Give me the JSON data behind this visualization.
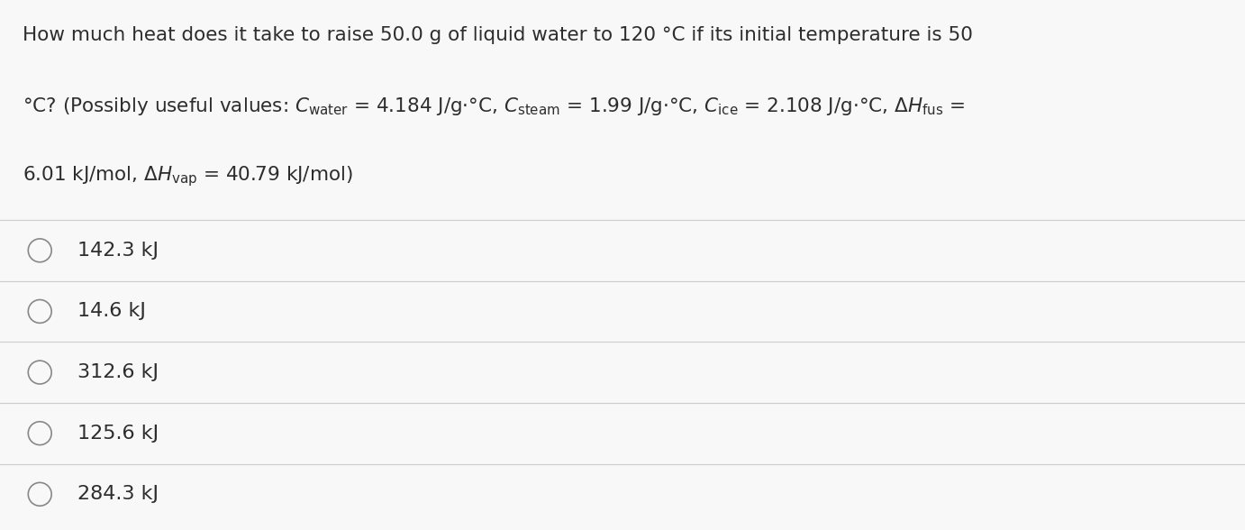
{
  "background_color": "#f8f8f8",
  "choices": [
    "142.3 kJ",
    "14.6 kJ",
    "312.6 kJ",
    "125.6 kJ",
    "284.3 kJ"
  ],
  "text_color": "#2d2d2d",
  "line_color": "#cccccc",
  "circle_color": "#888888",
  "font_size_question": 15.5,
  "font_size_choices": 16.0
}
